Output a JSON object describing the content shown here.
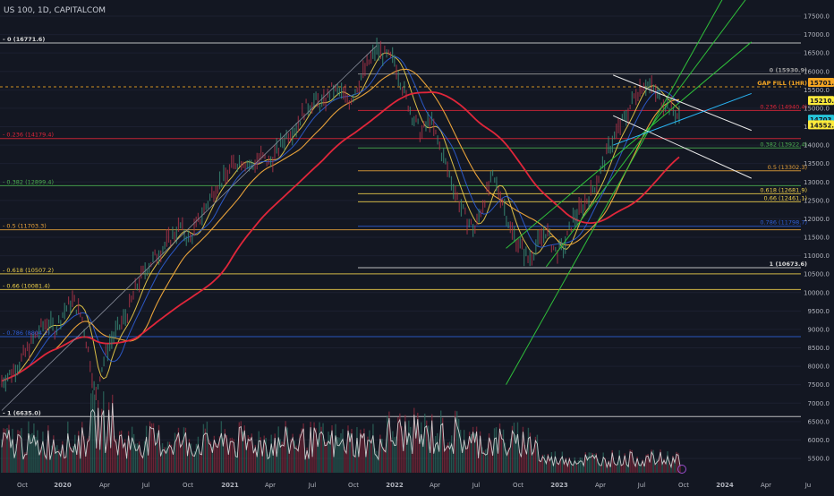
{
  "header": {
    "symbol_label": "US 100, 1D, CAPITALCOM"
  },
  "colors": {
    "background": "#131722",
    "price_line": "#8a8f9c",
    "ma_red": "#e0263a",
    "ma_orange": "#e8a23a",
    "ma_yellow": "#f0d04a",
    "ma_blue": "#2f5fd8",
    "channel_green": "#2fbf3a",
    "white": "#e9e9e9",
    "tag_orange": "#f5a623",
    "tag_yellow": "#ffeb3b",
    "tag_cyan": "#26c6da"
  },
  "chart_data": {
    "type": "line",
    "title": "US 100, 1D, CAPITALCOM",
    "xlabel": "",
    "ylabel": "",
    "y_axis_side": "right",
    "ylim": [
      5100,
      17800
    ],
    "x_tick_labels": [
      "Oct",
      "2020",
      "Apr",
      "Jul",
      "Oct",
      "2021",
      "Apr",
      "Jul",
      "Oct",
      "2022",
      "Apr",
      "Jul",
      "Oct",
      "2023",
      "Apr",
      "Jul",
      "Oct",
      "2024",
      "Apr",
      "Ju"
    ],
    "y_ticks": [
      5500,
      6000,
      6500,
      7000,
      7500,
      8000,
      8500,
      9000,
      9500,
      10000,
      10500,
      11000,
      11500,
      12000,
      12500,
      13000,
      13500,
      14000,
      14500,
      15000,
      15500,
      16000,
      16500,
      17000,
      17500
    ],
    "y_tick_labels": [
      "5500.0",
      "6000.0",
      "6500.0",
      "7000.0",
      "7500.0",
      "8000.0",
      "8500.0",
      "9000.0",
      "9500.0",
      "10000.0",
      "10500.0",
      "11000.0",
      "11500.0",
      "12000.0",
      "12500.0",
      "13000.0",
      "13500.0",
      "14000.0",
      "14500.0",
      "15000.0",
      "15500.0",
      "16000.0",
      "16500.0",
      "17000.0",
      "17500.0"
    ],
    "series": [
      {
        "values": [
          [
            0,
            7600
          ],
          [
            10,
            7800
          ],
          [
            20,
            8100
          ],
          [
            30,
            8500
          ],
          [
            40,
            8900
          ],
          [
            50,
            9200
          ],
          [
            60,
            9000
          ],
          [
            70,
            9500
          ],
          [
            80,
            9800
          ],
          [
            90,
            9300
          ],
          [
            100,
            8000
          ],
          [
            105,
            7100
          ],
          [
            110,
            7800
          ],
          [
            120,
            8600
          ],
          [
            130,
            9000
          ],
          [
            140,
            9400
          ],
          [
            150,
            10100
          ],
          [
            160,
            10600
          ],
          [
            170,
            10900
          ],
          [
            180,
            11200
          ],
          [
            190,
            11500
          ],
          [
            200,
            11800
          ],
          [
            210,
            11400
          ],
          [
            220,
            11900
          ],
          [
            230,
            12400
          ],
          [
            240,
            12900
          ],
          [
            250,
            13100
          ],
          [
            260,
            13500
          ],
          [
            270,
            13600
          ],
          [
            280,
            13400
          ],
          [
            290,
            13700
          ],
          [
            300,
            13500
          ],
          [
            310,
            13900
          ],
          [
            320,
            14300
          ],
          [
            330,
            14500
          ],
          [
            340,
            15000
          ],
          [
            350,
            15200
          ],
          [
            360,
            15100
          ],
          [
            370,
            15500
          ],
          [
            380,
            15400
          ],
          [
            390,
            15200
          ],
          [
            400,
            15700
          ],
          [
            410,
            16200
          ],
          [
            420,
            16600
          ],
          [
            430,
            16400
          ],
          [
            440,
            16300
          ],
          [
            450,
            15500
          ],
          [
            460,
            14800
          ],
          [
            470,
            14300
          ],
          [
            480,
            14700
          ],
          [
            490,
            14000
          ],
          [
            500,
            13300
          ],
          [
            510,
            12600
          ],
          [
            520,
            12000
          ],
          [
            530,
            11700
          ],
          [
            540,
            12500
          ],
          [
            550,
            13100
          ],
          [
            560,
            12600
          ],
          [
            570,
            11700
          ],
          [
            580,
            11300
          ],
          [
            590,
            10900
          ],
          [
            600,
            11300
          ],
          [
            610,
            11700
          ],
          [
            620,
            11100
          ],
          [
            630,
            11200
          ],
          [
            640,
            12000
          ],
          [
            650,
            12300
          ],
          [
            660,
            12700
          ],
          [
            670,
            13200
          ],
          [
            680,
            13900
          ],
          [
            690,
            14400
          ],
          [
            700,
            14800
          ],
          [
            710,
            15400
          ],
          [
            720,
            15700
          ],
          [
            730,
            15500
          ],
          [
            740,
            15200
          ],
          [
            750,
            15000
          ],
          [
            760,
            14700
          ]
        ]
      }
    ],
    "levels": [
      {
        "label": "0 (16771.6)",
        "value": 16771.6
      },
      {
        "label": "0.236 (14179.4)",
        "value": 14179.4
      },
      {
        "label": "0.382 (12899.4)",
        "value": 12899.4
      },
      {
        "label": "0.5 (11703.3)",
        "value": 11703.3
      },
      {
        "label": "0.618 (10507.2)",
        "value": 10507.2
      },
      {
        "label": "0.66 (10081.4)",
        "value": 10081.4
      },
      {
        "label": "0.786 (8804.2)",
        "value": 8804.2
      },
      {
        "label": "1 (6635.0)",
        "value": 6635.0
      },
      {
        "label": "0 (15930.9)",
        "value": 15930.9
      },
      {
        "label": "GAP FILL (1HR)",
        "value": 15580
      },
      {
        "label": "0.236 (14940.4)",
        "value": 14940.4
      },
      {
        "label": "0.382 (13922.4)",
        "value": 13922.4
      },
      {
        "label": "0.5 (13302.3)",
        "value": 13302.3
      },
      {
        "label": "0.618 (12681.9)",
        "value": 12681.9
      },
      {
        "label": "0.66 (12461.1)",
        "value": 12461.1
      },
      {
        "label": "0.786 (11798.7)",
        "value": 11798.7
      },
      {
        "label": "1 (10673.6)",
        "value": 10673.6
      }
    ],
    "price_tags": [
      "15701.7",
      "15210.7",
      "14703.9",
      "14552.5"
    ],
    "grid": false
  }
}
